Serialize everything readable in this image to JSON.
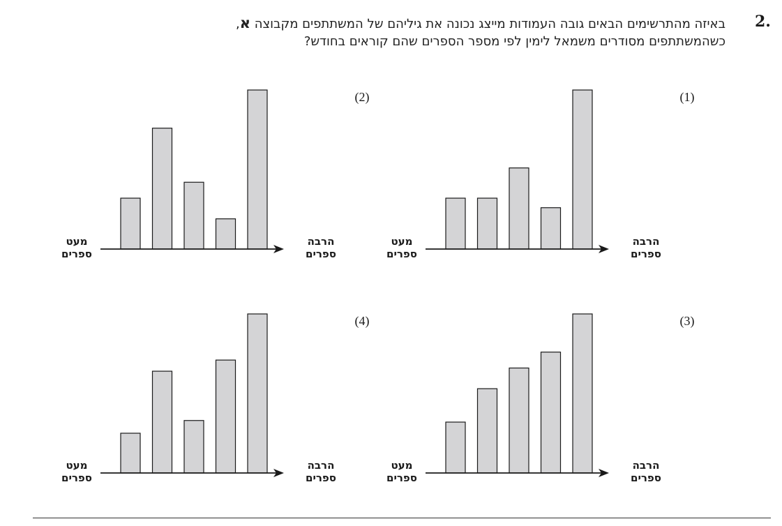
{
  "question": {
    "number": "2.",
    "line1_pre": "באיזה מהתרשימים הבאים גובה העמודות מייצג נכונה את גיליהם של המשתתפים מקבוצה ",
    "line1_bold": "א",
    "line1_post": ",",
    "line2": "כשהמשתתפים מסודרים משמאל לימין לפי מספר הספרים שהם קוראים בחודש?"
  },
  "axis_labels": {
    "few_line1": "מעט",
    "few_line2": "ספרים",
    "many_line1": "הרבה",
    "many_line2": "ספרים"
  },
  "colors": {
    "bar_fill": "#d4d4d6",
    "bar_stroke": "#1a1a1a",
    "axis": "#1a1a1a"
  },
  "chart_data": [
    {
      "type": "bar",
      "label": "(1)",
      "categories": [
        "1",
        "2",
        "3",
        "4",
        "5"
      ],
      "values": [
        32,
        32,
        51,
        26,
        100
      ],
      "xlabel_left": "מעט ספרים",
      "xlabel_right": "הרבה ספרים",
      "ylim": [
        0,
        100
      ],
      "grid": false
    },
    {
      "type": "bar",
      "label": "(2)",
      "categories": [
        "1",
        "2",
        "3",
        "4",
        "5"
      ],
      "values": [
        32,
        76,
        42,
        19,
        100
      ],
      "xlabel_left": "מעט ספרים",
      "xlabel_right": "הרבה ספרים",
      "ylim": [
        0,
        100
      ],
      "grid": false
    },
    {
      "type": "bar",
      "label": "(3)",
      "categories": [
        "1",
        "2",
        "3",
        "4",
        "5"
      ],
      "values": [
        32,
        53,
        66,
        76,
        100
      ],
      "xlabel_left": "מעט ספרים",
      "xlabel_right": "הרבה ספרים",
      "ylim": [
        0,
        100
      ],
      "grid": false
    },
    {
      "type": "bar",
      "label": "(4)",
      "categories": [
        "1",
        "2",
        "3",
        "4",
        "5"
      ],
      "values": [
        25,
        64,
        33,
        71,
        100
      ],
      "xlabel_left": "מעט ספרים",
      "xlabel_right": "הרבה ספרים",
      "ylim": [
        0,
        100
      ],
      "grid": false
    }
  ]
}
